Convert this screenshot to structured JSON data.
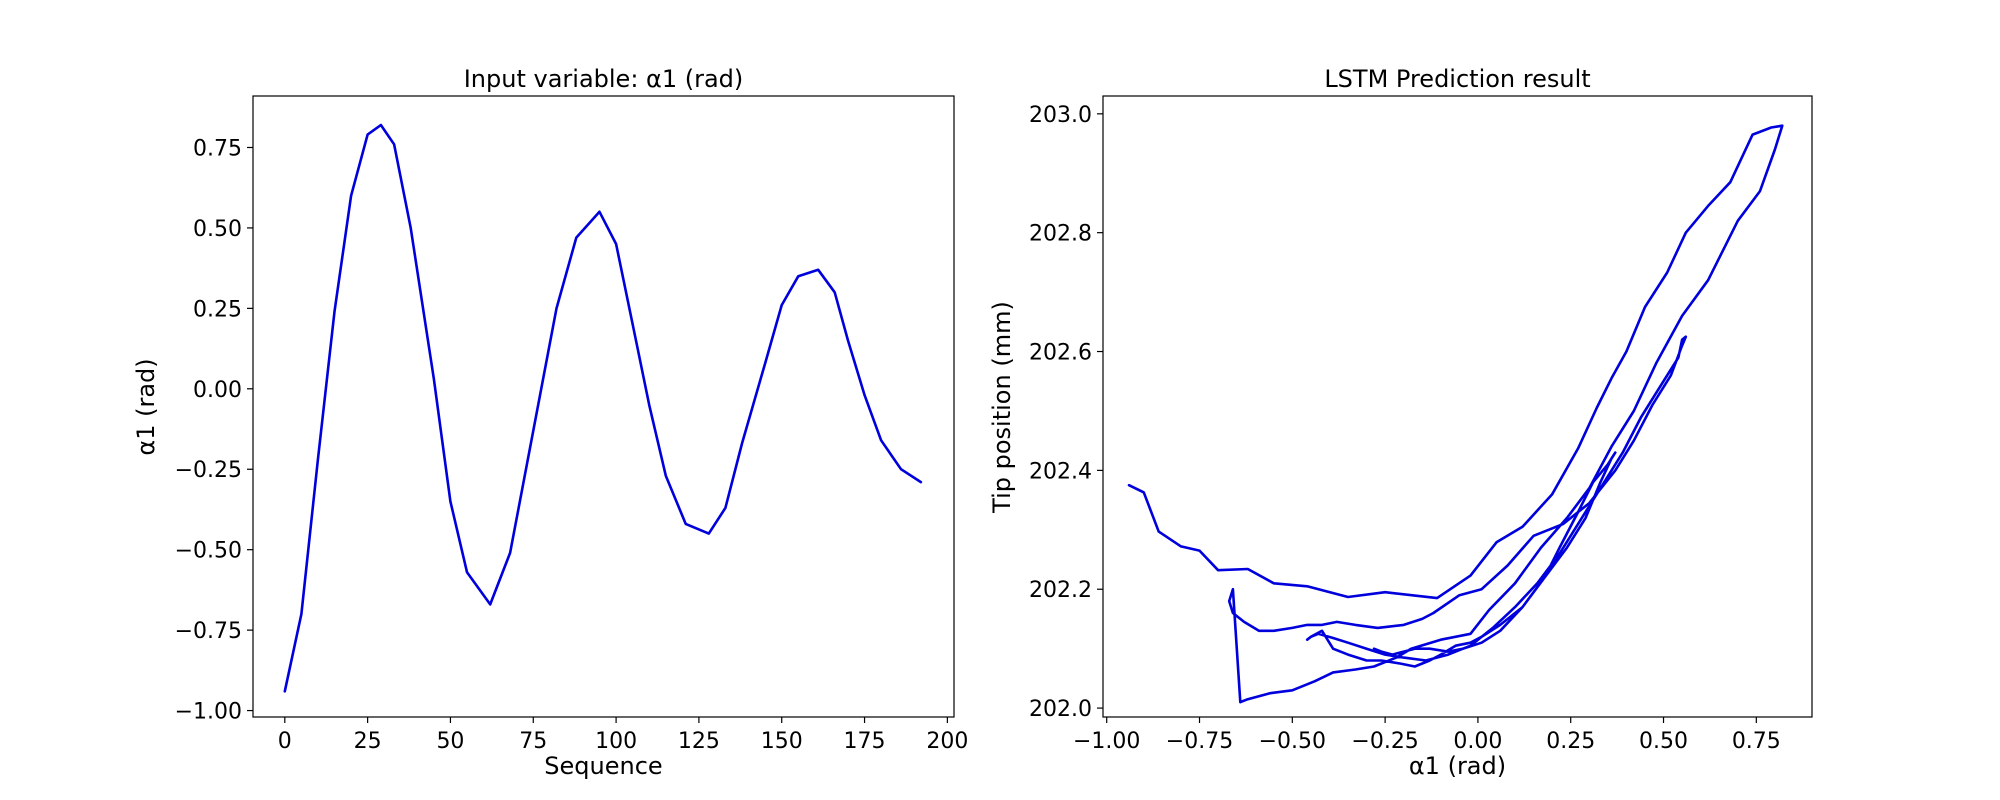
{
  "colors": {
    "line": "#0000dd",
    "axes": "#000000",
    "background": "#ffffff"
  },
  "chart_data": [
    {
      "type": "line",
      "title": "Input variable: α1 (rad)",
      "xlabel": "Sequence",
      "ylabel": "α1 (rad)",
      "xlim": [
        -9.6,
        202
      ],
      "ylim": [
        -1.02,
        0.91
      ],
      "xticks": [
        0,
        25,
        50,
        75,
        100,
        125,
        150,
        175,
        200
      ],
      "xtick_labels": [
        "0",
        "25",
        "50",
        "75",
        "100",
        "125",
        "150",
        "175",
        "200"
      ],
      "yticks": [
        -1.0,
        -0.75,
        -0.5,
        -0.25,
        0.0,
        0.25,
        0.5,
        0.75
      ],
      "ytick_labels": [
        "−1.00",
        "−0.75",
        "−0.50",
        "−0.25",
        "0.00",
        "0.25",
        "0.50",
        "0.75"
      ],
      "grid": false,
      "series": [
        {
          "x": [
            0,
            5,
            10,
            15,
            20,
            25,
            29,
            33,
            38,
            45,
            50,
            55,
            62,
            68,
            75,
            82,
            88,
            95,
            100,
            105,
            110,
            115,
            121,
            128,
            133,
            138,
            145,
            150,
            155,
            161,
            166,
            170,
            175,
            180,
            186,
            192
          ],
          "y": [
            -0.94,
            -0.7,
            -0.22,
            0.24,
            0.6,
            0.79,
            0.82,
            0.76,
            0.5,
            0.03,
            -0.35,
            -0.57,
            -0.67,
            -0.51,
            -0.13,
            0.25,
            0.47,
            0.55,
            0.45,
            0.2,
            -0.05,
            -0.27,
            -0.42,
            -0.45,
            -0.37,
            -0.17,
            0.08,
            0.26,
            0.35,
            0.37,
            0.3,
            0.15,
            -0.02,
            -0.16,
            -0.25,
            -0.29
          ]
        }
      ]
    },
    {
      "type": "line",
      "title": "LSTM Prediction result",
      "xlabel": "α1 (rad)",
      "ylabel": "Tip position (mm)",
      "xlim": [
        -1.01,
        0.9
      ],
      "ylim": [
        201.985,
        203.03
      ],
      "xticks": [
        -1.0,
        -0.75,
        -0.5,
        -0.25,
        0.0,
        0.25,
        0.5,
        0.75
      ],
      "xtick_labels": [
        "−1.00",
        "−0.75",
        "−0.50",
        "−0.25",
        "0.00",
        "0.25",
        "0.50",
        "0.75"
      ],
      "yticks": [
        202.0,
        202.2,
        202.4,
        202.6,
        202.8,
        203.0
      ],
      "ytick_labels": [
        "202.0",
        "202.2",
        "202.4",
        "202.6",
        "202.8",
        "203.0"
      ],
      "grid": false,
      "series": [
        {
          "x": [
            -0.94,
            -0.9,
            -0.86,
            -0.8,
            -0.75,
            -0.7,
            -0.62,
            -0.55,
            -0.46,
            -0.35,
            -0.25,
            -0.11,
            -0.02,
            0.05,
            0.12,
            0.2,
            0.27,
            0.32,
            0.36,
            0.4,
            0.45,
            0.51,
            0.56,
            0.62,
            0.68,
            0.74,
            0.79,
            0.81,
            0.82,
            0.8,
            0.76,
            0.7,
            0.62,
            0.55,
            0.48,
            0.42,
            0.36,
            0.3,
            0.24,
            0.17,
            0.1,
            0.03,
            -0.02,
            -0.1,
            -0.18,
            -0.22,
            -0.28,
            -0.33,
            -0.39,
            -0.44,
            -0.5,
            -0.56,
            -0.59,
            -0.62,
            -0.64,
            -0.66,
            -0.67,
            -0.66,
            -0.63,
            -0.59,
            -0.55,
            -0.5,
            -0.46,
            -0.42,
            -0.38,
            -0.33,
            -0.27,
            -0.2,
            -0.15,
            -0.12,
            -0.05,
            0.01,
            0.08,
            0.15,
            0.23,
            0.3,
            0.37,
            0.42,
            0.47,
            0.52,
            0.55,
            0.56,
            0.55,
            0.54,
            0.5,
            0.44,
            0.39,
            0.32,
            0.27,
            0.22,
            0.16,
            0.1,
            0.04,
            -0.02,
            -0.08,
            -0.14,
            -0.2,
            -0.25,
            -0.3,
            -0.35,
            -0.39,
            -0.43,
            -0.45,
            -0.46,
            -0.45,
            -0.42,
            -0.39,
            -0.35,
            -0.3,
            -0.26,
            -0.21,
            -0.17,
            -0.13,
            -0.1,
            -0.06,
            -0.02,
            0.01,
            0.06,
            0.12,
            0.18,
            0.24,
            0.29,
            0.33,
            0.36,
            0.37,
            0.35,
            0.31,
            0.27,
            0.22,
            0.18,
            0.12,
            0.06,
            0.01,
            -0.04,
            -0.08,
            -0.13,
            -0.17,
            -0.2,
            -0.23,
            -0.26,
            -0.28
          ],
          "y": [
            202.375,
            202.363,
            202.297,
            202.272,
            202.265,
            202.232,
            202.234,
            202.21,
            202.205,
            202.187,
            202.195,
            202.185,
            202.223,
            202.279,
            202.305,
            202.36,
            202.437,
            202.505,
            202.555,
            202.6,
            202.675,
            202.733,
            202.8,
            202.845,
            202.885,
            202.965,
            202.977,
            202.979,
            202.98,
            202.94,
            202.87,
            202.82,
            202.72,
            202.66,
            202.58,
            202.5,
            202.44,
            202.37,
            202.32,
            202.27,
            202.21,
            202.165,
            202.125,
            202.115,
            202.1,
            202.085,
            202.07,
            202.065,
            202.06,
            202.045,
            202.03,
            202.025,
            202.02,
            202.015,
            202.01,
            202.2,
            202.18,
            202.16,
            202.145,
            202.13,
            202.13,
            202.135,
            202.14,
            202.14,
            202.145,
            202.14,
            202.135,
            202.14,
            202.15,
            202.16,
            202.19,
            202.2,
            202.24,
            202.29,
            202.31,
            202.345,
            202.4,
            202.45,
            202.51,
            202.56,
            202.61,
            202.625,
            202.62,
            202.59,
            202.55,
            202.49,
            202.43,
            202.36,
            202.31,
            202.26,
            202.21,
            202.17,
            202.135,
            202.105,
            202.09,
            202.08,
            202.085,
            202.09,
            202.1,
            202.11,
            202.118,
            202.125,
            202.12,
            202.115,
            202.12,
            202.13,
            202.1,
            202.09,
            202.08,
            202.08,
            202.075,
            202.07,
            202.08,
            202.09,
            202.105,
            202.11,
            202.12,
            202.14,
            202.17,
            202.22,
            202.27,
            202.32,
            202.38,
            202.42,
            202.43,
            202.41,
            202.38,
            202.33,
            202.27,
            202.22,
            202.17,
            202.13,
            202.11,
            202.1,
            202.095,
            202.1,
            202.1,
            202.095,
            202.09,
            202.095,
            202.1
          ]
        }
      ]
    }
  ]
}
